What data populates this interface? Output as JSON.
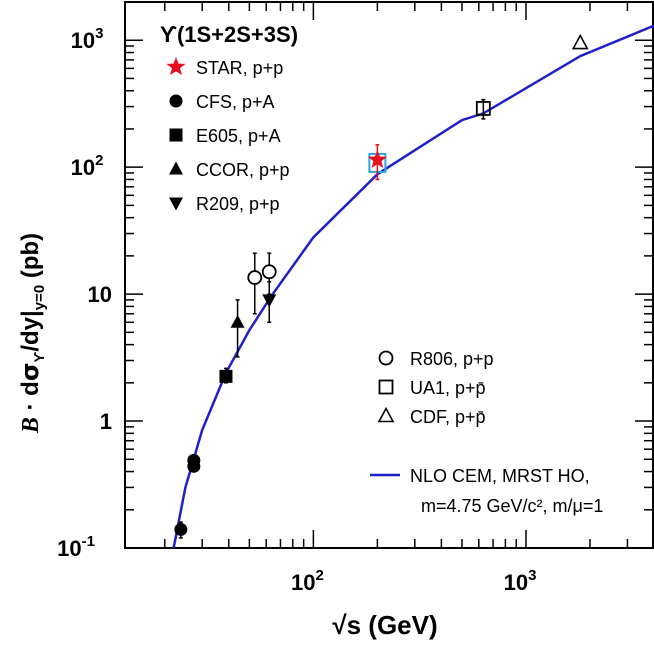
{
  "chart_data": {
    "type": "scatter",
    "title": "ϒ(1S+2S+3S)",
    "xlabel": "√s (GeV)",
    "ylabel": "B · dσϒ/dy|y=0 (pb)",
    "ylabel_parts": {
      "b": "B",
      "dot": " · d",
      "sigma": "σ",
      "sub1": "ϒ",
      "dy": "/dy|",
      "sub2": "y=0",
      "unit": " (pb)"
    },
    "x_scale": "log",
    "y_scale": "log",
    "xlim": [
      13,
      4000
    ],
    "ylim": [
      0.1,
      2000
    ],
    "x_ticks": [
      {
        "value": 100,
        "base": "10",
        "exp": "2"
      },
      {
        "value": 1000,
        "base": "10",
        "exp": "3"
      }
    ],
    "y_ticks": [
      {
        "value": 0.1,
        "base": "10",
        "exp": "-1"
      },
      {
        "value": 1,
        "label": "1"
      },
      {
        "value": 10,
        "label": "10"
      },
      {
        "value": 100,
        "base": "10",
        "exp": "2"
      },
      {
        "value": 1000,
        "base": "10",
        "exp": "3"
      }
    ],
    "series": [
      {
        "name": "STAR, p+p",
        "marker": "star",
        "color": "#e8101e",
        "points": [
          {
            "x": 200,
            "y": 114,
            "ylo": 80,
            "yhi": 150
          }
        ]
      },
      {
        "name": "CFS, p+A",
        "marker": "circle-filled",
        "color": "#000000",
        "points": [
          {
            "x": 23.8,
            "y": 0.14,
            "ylo": 0.12,
            "yhi": 0.16
          },
          {
            "x": 27.4,
            "y": 0.44,
            "ylo": 0.4,
            "yhi": 0.48
          },
          {
            "x": 27.4,
            "y": 0.49,
            "ylo": 0.45,
            "yhi": 0.53
          }
        ]
      },
      {
        "name": "E605, p+A",
        "marker": "square-filled",
        "color": "#000000",
        "points": [
          {
            "x": 38.8,
            "y": 2.25,
            "ylo": 2.0,
            "yhi": 2.6
          }
        ]
      },
      {
        "name": "CCOR, p+p",
        "marker": "triangle-up-filled",
        "color": "#000000",
        "points": [
          {
            "x": 44,
            "y": 6.0,
            "ylo": 3.2,
            "yhi": 9.0
          }
        ]
      },
      {
        "name": "R209, p+p",
        "marker": "triangle-down-filled",
        "color": "#000000",
        "points": [
          {
            "x": 62,
            "y": 9.0,
            "ylo": 6.0,
            "yhi": 12.5
          }
        ]
      },
      {
        "name": "R806, p+p",
        "marker": "circle-open",
        "color": "#000000",
        "points": [
          {
            "x": 53,
            "y": 13.5,
            "ylo": 7,
            "yhi": 21
          },
          {
            "x": 62,
            "y": 15,
            "ylo": 10,
            "yhi": 21
          }
        ]
      },
      {
        "name": "UA1, p+p̄",
        "marker": "square-open",
        "color": "#000000",
        "points": [
          {
            "x": 630,
            "y": 290,
            "ylo": 240,
            "yhi": 340
          }
        ]
      },
      {
        "name": "CDF, p+p̄",
        "marker": "triangle-up-open",
        "color": "#000000",
        "points": [
          {
            "x": 1800,
            "y": 950
          }
        ]
      }
    ],
    "extra_markers": [
      {
        "marker": "square-open",
        "color": "#2aa7df",
        "x": 200,
        "y": 108
      }
    ],
    "curve": {
      "name": "NLO CEM, MRST HO,",
      "name2": "m=4.75 GeV/c², m/μ=1",
      "color": "#1f20c8",
      "points": [
        {
          "x": 22,
          "y": 0.1
        },
        {
          "x": 25,
          "y": 0.3
        },
        {
          "x": 30,
          "y": 0.85
        },
        {
          "x": 38.8,
          "y": 2.4
        },
        {
          "x": 50,
          "y": 5.2
        },
        {
          "x": 63,
          "y": 9.5
        },
        {
          "x": 100,
          "y": 28
        },
        {
          "x": 200,
          "y": 88
        },
        {
          "x": 500,
          "y": 235
        },
        {
          "x": 630,
          "y": 265
        },
        {
          "x": 1800,
          "y": 750
        },
        {
          "x": 4000,
          "y": 1300
        }
      ]
    },
    "legend_left_position": "top-left",
    "legend_right_position": "bottom-right",
    "grid": false
  }
}
